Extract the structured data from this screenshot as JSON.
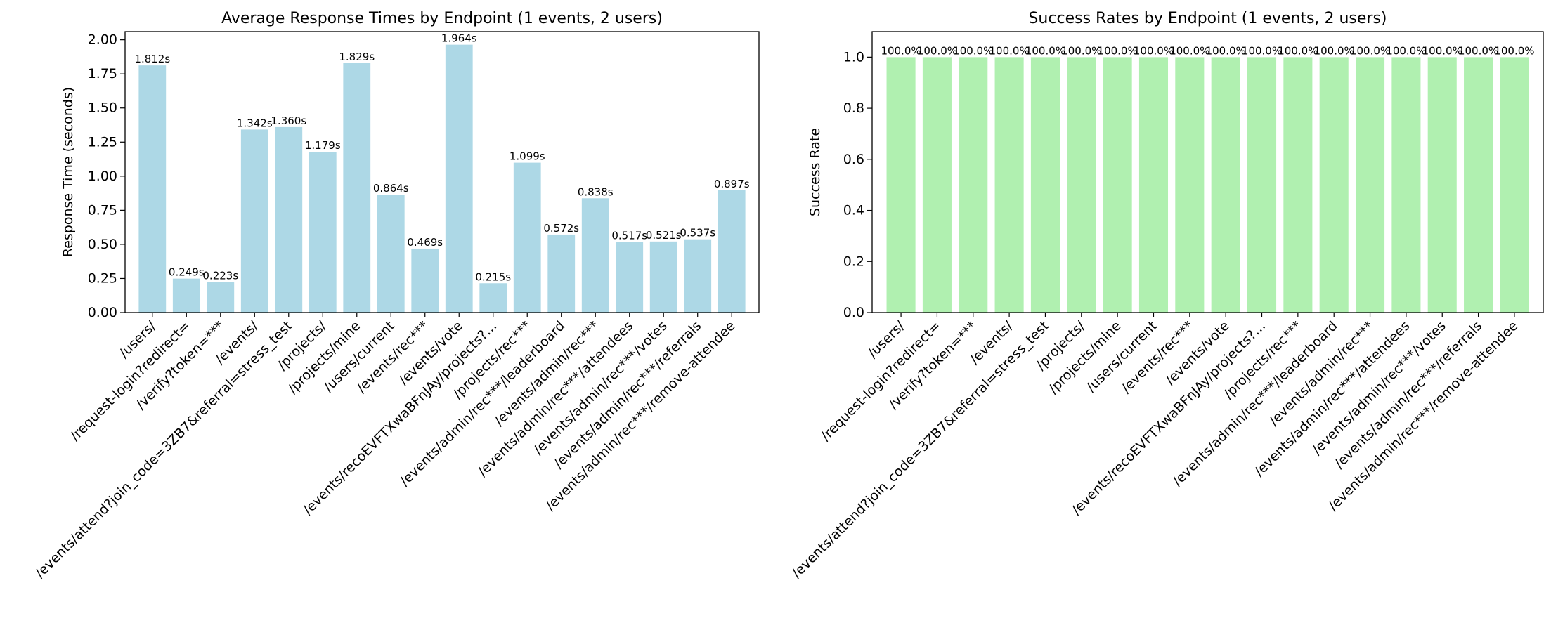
{
  "chart_data": [
    {
      "type": "bar",
      "title": "Average Response Times by Endpoint (1 events, 2 users)",
      "xlabel": "",
      "ylabel": "Response Time (seconds)",
      "ylim": [
        0,
        2.06
      ],
      "yticks": [
        "0.00",
        "0.25",
        "0.50",
        "0.75",
        "1.00",
        "1.25",
        "1.50",
        "1.75",
        "2.00"
      ],
      "grid": false,
      "bar_color": "#add8e6",
      "categories": [
        "/users/",
        "/request-login?redirect=",
        "/verify?token=***",
        "/events/",
        "/events/attend?join_code=3ZB7&referral=stress_test",
        "/projects/",
        "/projects/mine",
        "/users/current",
        "/events/rec***",
        "/events/vote",
        "/events/recoEVFTXwaBFnJAy/projects?...",
        "/projects/rec***",
        "/events/admin/rec***/leaderboard",
        "/events/admin/rec***",
        "/events/admin/rec***/attendees",
        "/events/admin/rec***/votes",
        "/events/admin/rec***/referrals",
        "/events/admin/rec***/remove-attendee"
      ],
      "values": [
        1.812,
        0.249,
        0.223,
        1.342,
        1.36,
        1.179,
        1.829,
        0.864,
        0.469,
        1.964,
        0.215,
        1.099,
        0.572,
        0.838,
        0.517,
        0.521,
        0.537,
        0.897
      ],
      "data_labels": [
        "1.812s",
        "0.249s",
        "0.223s",
        "1.342s",
        "1.360s",
        "1.179s",
        "1.829s",
        "0.864s",
        "0.469s",
        "1.964s",
        "0.215s",
        "1.099s",
        "0.572s",
        "0.838s",
        "0.517s",
        "0.521s",
        "0.537s",
        "0.897s"
      ]
    },
    {
      "type": "bar",
      "title": "Success Rates by Endpoint (1 events, 2 users)",
      "xlabel": "",
      "ylabel": "Success Rate",
      "ylim": [
        0,
        1.1
      ],
      "yticks": [
        "0.0",
        "0.2",
        "0.4",
        "0.6",
        "0.8",
        "1.0"
      ],
      "grid": false,
      "bar_color": "#b0f0b0",
      "categories": [
        "/users/",
        "/request-login?redirect=",
        "/verify?token=***",
        "/events/",
        "/events/attend?join_code=3ZB7&referral=stress_test",
        "/projects/",
        "/projects/mine",
        "/users/current",
        "/events/rec***",
        "/events/vote",
        "/events/recoEVFTXwaBFnJAy/projects?...",
        "/projects/rec***",
        "/events/admin/rec***/leaderboard",
        "/events/admin/rec***",
        "/events/admin/rec***/attendees",
        "/events/admin/rec***/votes",
        "/events/admin/rec***/referrals",
        "/events/admin/rec***/remove-attendee"
      ],
      "values": [
        1.0,
        1.0,
        1.0,
        1.0,
        1.0,
        1.0,
        1.0,
        1.0,
        1.0,
        1.0,
        1.0,
        1.0,
        1.0,
        1.0,
        1.0,
        1.0,
        1.0,
        1.0
      ],
      "data_labels": [
        "100.0%",
        "100.0%",
        "100.0%",
        "100.0%",
        "100.0%",
        "100.0%",
        "100.0%",
        "100.0%",
        "100.0%",
        "100.0%",
        "100.0%",
        "100.0%",
        "100.0%",
        "100.0%",
        "100.0%",
        "100.0%",
        "100.0%",
        "100.0%"
      ]
    }
  ]
}
